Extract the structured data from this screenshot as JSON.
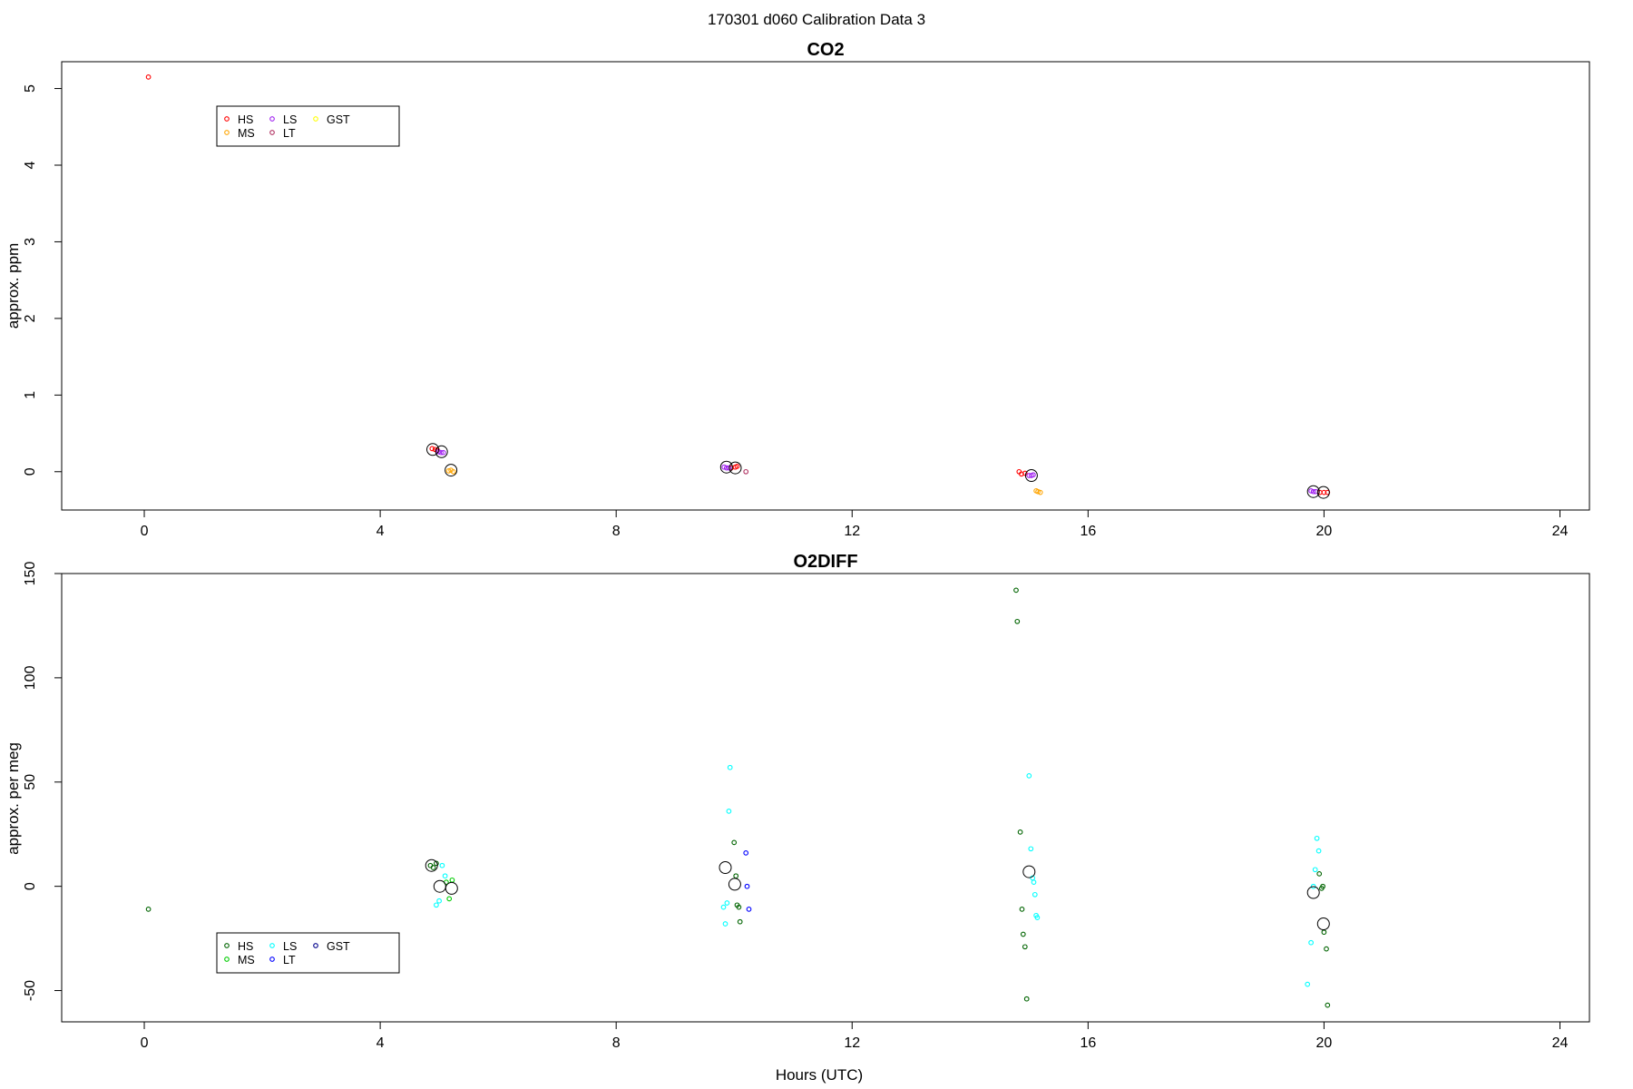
{
  "figure": {
    "suptitle": "170301   d060   Calibration Data 3",
    "xlabel": "Hours (UTC)"
  },
  "chart_data": [
    {
      "type": "scatter",
      "title": "CO2",
      "xlabel": "",
      "ylabel": "approx. ppm",
      "xlim": [
        -1.4,
        24.5
      ],
      "ylim": [
        -0.5,
        5.35
      ],
      "xticks": [
        0,
        4,
        8,
        12,
        16,
        20,
        24
      ],
      "yticks": [
        0,
        1,
        2,
        3,
        4,
        5
      ],
      "legend": {
        "position": "top-left"
      },
      "series": [
        {
          "name": "HS",
          "color": "#ff0000",
          "marker": "circle",
          "points": [
            [
              0.07,
              5.15
            ],
            [
              4.88,
              0.3
            ],
            [
              4.93,
              0.29
            ],
            [
              4.97,
              0.28
            ],
            [
              9.95,
              0.05
            ],
            [
              10.02,
              0.06
            ],
            [
              10.05,
              0.07
            ],
            [
              14.83,
              0.0
            ],
            [
              14.87,
              -0.03
            ],
            [
              14.93,
              -0.02
            ],
            [
              19.93,
              -0.27
            ],
            [
              20.0,
              -0.27
            ],
            [
              20.06,
              -0.27
            ]
          ]
        },
        {
          "name": "MS",
          "color": "#ffa500",
          "marker": "circle",
          "points": [
            [
              5.16,
              0.01
            ],
            [
              5.2,
              0.02
            ],
            [
              5.24,
              0.0
            ],
            [
              15.12,
              -0.25
            ],
            [
              15.15,
              -0.26
            ],
            [
              15.19,
              -0.27
            ]
          ]
        },
        {
          "name": "LS",
          "color": "#a020f0",
          "marker": "circle",
          "points": [
            [
              4.99,
              0.26
            ],
            [
              5.03,
              0.25
            ],
            [
              5.07,
              0.25
            ],
            [
              9.83,
              0.06
            ],
            [
              9.87,
              0.05
            ],
            [
              9.91,
              0.05
            ],
            [
              15.0,
              -0.05
            ],
            [
              15.04,
              -0.05
            ],
            [
              15.07,
              -0.04
            ],
            [
              19.78,
              -0.25
            ],
            [
              19.82,
              -0.26
            ],
            [
              19.86,
              -0.26
            ]
          ]
        },
        {
          "name": "LT",
          "color": "#b03060",
          "marker": "circle",
          "points": [
            [
              10.2,
              0.0
            ]
          ]
        },
        {
          "name": "GST",
          "color": "#ffff00",
          "marker": "circle",
          "points": []
        }
      ],
      "means": [
        [
          4.89,
          0.29
        ],
        [
          5.04,
          0.26
        ],
        [
          5.2,
          0.02
        ],
        [
          9.87,
          0.06
        ],
        [
          10.02,
          0.05
        ],
        [
          15.04,
          -0.05
        ],
        [
          19.82,
          -0.26
        ],
        [
          19.99,
          -0.27
        ]
      ]
    },
    {
      "type": "scatter",
      "title": "O2DIFF",
      "xlabel": "Hours (UTC)",
      "ylabel": "approx. per meg",
      "xlim": [
        -1.4,
        24.5
      ],
      "ylim": [
        -65,
        150
      ],
      "xticks": [
        0,
        4,
        8,
        12,
        16,
        20,
        24
      ],
      "yticks": [
        -50,
        0,
        50,
        100,
        150
      ],
      "legend": {
        "position": "bottom-left"
      },
      "series": [
        {
          "name": "HS",
          "color": "#006400",
          "marker": "circle",
          "points": [
            [
              0.07,
              -11
            ],
            [
              4.85,
              10
            ],
            [
              4.9,
              9
            ],
            [
              4.95,
              11
            ],
            [
              10.0,
              21
            ],
            [
              10.03,
              5
            ],
            [
              10.05,
              -9
            ],
            [
              10.08,
              -10
            ],
            [
              10.1,
              -17
            ],
            [
              14.78,
              142
            ],
            [
              14.8,
              127
            ],
            [
              14.85,
              26
            ],
            [
              14.88,
              -11
            ],
            [
              14.9,
              -23
            ],
            [
              14.93,
              -29
            ],
            [
              14.96,
              -54
            ],
            [
              19.92,
              6
            ],
            [
              19.96,
              -1
            ],
            [
              19.98,
              0
            ],
            [
              20.0,
              -22
            ],
            [
              20.04,
              -30
            ],
            [
              20.06,
              -57
            ]
          ]
        },
        {
          "name": "MS",
          "color": "#00cc00",
          "marker": "circle",
          "points": [
            [
              5.12,
              2
            ],
            [
              5.17,
              -6
            ],
            [
              5.22,
              3
            ]
          ]
        },
        {
          "name": "LS",
          "color": "#00ffff",
          "marker": "circle",
          "points": [
            [
              4.95,
              -9
            ],
            [
              5.0,
              -7
            ],
            [
              5.05,
              10
            ],
            [
              5.1,
              5
            ],
            [
              9.82,
              -10
            ],
            [
              9.85,
              -18
            ],
            [
              9.88,
              -8
            ],
            [
              9.91,
              36
            ],
            [
              9.93,
              57
            ],
            [
              15.0,
              53
            ],
            [
              15.03,
              18
            ],
            [
              15.06,
              4
            ],
            [
              15.08,
              2
            ],
            [
              15.1,
              -4
            ],
            [
              15.12,
              -14
            ],
            [
              15.14,
              -15
            ],
            [
              19.72,
              -47
            ],
            [
              19.78,
              -27
            ],
            [
              19.82,
              0
            ],
            [
              19.85,
              8
            ],
            [
              19.88,
              23
            ],
            [
              19.91,
              17
            ]
          ]
        },
        {
          "name": "LT",
          "color": "#0000ff",
          "marker": "circle",
          "points": [
            [
              10.2,
              16
            ],
            [
              10.22,
              0
            ],
            [
              10.25,
              -11
            ]
          ]
        },
        {
          "name": "GST",
          "color": "#00008b",
          "marker": "circle",
          "points": []
        }
      ],
      "means": [
        [
          4.87,
          10
        ],
        [
          5.01,
          0
        ],
        [
          5.21,
          -1
        ],
        [
          9.85,
          9
        ],
        [
          10.01,
          1
        ],
        [
          15.0,
          7
        ],
        [
          19.82,
          -3
        ],
        [
          19.99,
          -18
        ]
      ]
    }
  ]
}
